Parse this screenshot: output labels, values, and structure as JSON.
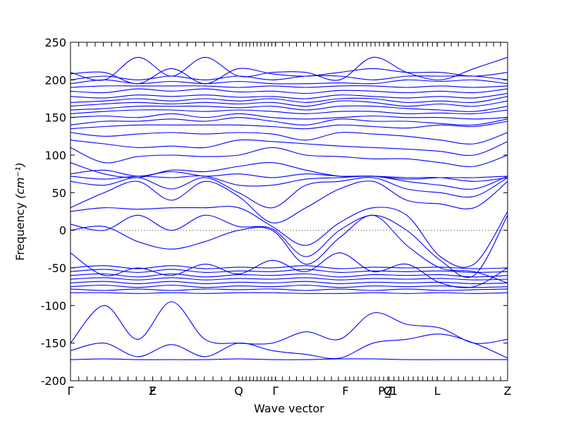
{
  "chart_data": {
    "type": "line",
    "title": "",
    "xlabel": "Wave vector",
    "ylabel": "Frequency",
    "ylabel_unit": "(cm⁻¹)",
    "ylim": [
      -200,
      250
    ],
    "yticks": [
      -200,
      -150,
      -100,
      -50,
      0,
      50,
      100,
      150,
      200,
      250
    ],
    "xlim": [
      0,
      1
    ],
    "grid": false,
    "legend": "none",
    "line_color": "#0000ff",
    "zero_line_color": "#4a4a4a",
    "high_symmetry_points": [
      {
        "label": "Γ",
        "x": 0.0
      },
      {
        "label": "F",
        "x": 0.188
      },
      {
        "label": "Z",
        "x": 0.188
      },
      {
        "label": "Q",
        "x": 0.385
      },
      {
        "label": "Γ",
        "x": 0.469
      },
      {
        "label": "F",
        "x": 0.629
      },
      {
        "label": "P_1",
        "x": 0.726
      },
      {
        "label": "Q",
        "x": 0.726
      },
      {
        "label": "Z",
        "x": 0.729
      },
      {
        "label": "L",
        "x": 0.839
      },
      {
        "label": "Z",
        "x": 1.0
      }
    ],
    "segments": [
      [
        0.0,
        0.188
      ],
      [
        0.188,
        0.385
      ],
      [
        0.385,
        0.469
      ],
      [
        0.469,
        0.629
      ],
      [
        0.629,
        0.726
      ],
      [
        0.729,
        0.839
      ],
      [
        0.839,
        1.0
      ]
    ],
    "series": [
      {
        "values": [
          -172,
          -171,
          -172,
          -172,
          -172,
          -171,
          -172,
          -172,
          -171,
          -171,
          -172,
          -172,
          -172,
          -172
        ]
      },
      {
        "values": [
          -160,
          -150,
          -168,
          -152,
          -168,
          -150,
          -160,
          -165,
          -170,
          -150,
          -145,
          -138,
          -150,
          -170
        ]
      },
      {
        "values": [
          -150,
          -100,
          -145,
          -95,
          -145,
          -150,
          -150,
          -135,
          -145,
          -110,
          -125,
          -130,
          -150,
          -145
        ]
      },
      {
        "values": [
          -83,
          -83,
          -84,
          -83,
          -84,
          -83,
          -83,
          -84,
          -84,
          -83,
          -84,
          -83,
          -84,
          -83
        ]
      },
      {
        "values": [
          -78,
          -80,
          -78,
          -80,
          -78,
          -79,
          -78,
          -80,
          -78,
          -80,
          -78,
          -80,
          -79,
          -78
        ]
      },
      {
        "values": [
          -75,
          -73,
          -76,
          -73,
          -76,
          -74,
          -75,
          -73,
          -76,
          -74,
          -75,
          -74,
          -76,
          -75
        ]
      },
      {
        "values": [
          -70,
          -68,
          -71,
          -68,
          -71,
          -69,
          -70,
          -68,
          -71,
          -69,
          -70,
          -69,
          -71,
          -70
        ]
      },
      {
        "values": [
          -65,
          -63,
          -66,
          -63,
          -66,
          -64,
          -65,
          -63,
          -66,
          -64,
          -65,
          -64,
          -66,
          -65
        ]
      },
      {
        "values": [
          -60,
          -58,
          -62,
          -58,
          -62,
          -59,
          -60,
          -58,
          -62,
          -59,
          -60,
          -59,
          -62,
          -60
        ]
      },
      {
        "values": [
          -55,
          -52,
          -56,
          -52,
          -56,
          -54,
          -55,
          -52,
          -56,
          -54,
          -55,
          -54,
          -56,
          -55
        ]
      },
      {
        "values": [
          -50,
          -47,
          -51,
          -47,
          -51,
          -49,
          -50,
          -47,
          -51,
          -49,
          -50,
          -49,
          -51,
          -50
        ]
      },
      {
        "values": [
          -30,
          -60,
          -50,
          -60,
          -45,
          -58,
          -40,
          -55,
          -30,
          -55,
          -45,
          -70,
          -75,
          -50
        ]
      },
      {
        "values": [
          0,
          5,
          -15,
          -25,
          -15,
          0,
          0,
          -45,
          -10,
          20,
          -20,
          -50,
          -55,
          -70
        ]
      },
      {
        "values": [
          8,
          0,
          20,
          0,
          20,
          5,
          2,
          -35,
          0,
          20,
          0,
          -40,
          -60,
          20
        ]
      },
      {
        "values": [
          25,
          30,
          28,
          30,
          30,
          30,
          5,
          -20,
          10,
          30,
          20,
          -35,
          -45,
          25
        ]
      },
      {
        "values": [
          30,
          50,
          65,
          40,
          65,
          45,
          10,
          30,
          55,
          65,
          40,
          35,
          30,
          65
        ]
      },
      {
        "values": [
          65,
          60,
          70,
          55,
          70,
          50,
          30,
          60,
          65,
          70,
          55,
          50,
          45,
          70
        ]
      },
      {
        "values": [
          72,
          68,
          72,
          70,
          72,
          60,
          60,
          68,
          70,
          72,
          65,
          60,
          55,
          72
        ]
      },
      {
        "values": [
          75,
          80,
          72,
          78,
          72,
          75,
          70,
          75,
          72,
          72,
          68,
          70,
          70,
          72
        ]
      },
      {
        "values": [
          90,
          75,
          70,
          80,
          78,
          85,
          90,
          80,
          72,
          72,
          70,
          70,
          65,
          70
        ]
      },
      {
        "values": [
          110,
          90,
          98,
          100,
          98,
          100,
          110,
          100,
          98,
          95,
          95,
          90,
          85,
          100
        ]
      },
      {
        "values": [
          120,
          115,
          110,
          112,
          110,
          120,
          118,
          115,
          112,
          110,
          108,
          105,
          100,
          118
        ]
      },
      {
        "values": [
          130,
          125,
          128,
          130,
          128,
          130,
          128,
          120,
          130,
          128,
          125,
          120,
          115,
          130
        ]
      },
      {
        "values": [
          135,
          138,
          140,
          140,
          140,
          140,
          138,
          135,
          140,
          138,
          136,
          140,
          138,
          145
        ]
      },
      {
        "values": [
          140,
          145,
          145,
          148,
          145,
          150,
          145,
          140,
          148,
          145,
          145,
          142,
          140,
          148
        ]
      },
      {
        "values": [
          150,
          152,
          150,
          155,
          150,
          155,
          150,
          148,
          150,
          152,
          150,
          150,
          148,
          150
        ]
      },
      {
        "values": [
          155,
          158,
          160,
          160,
          158,
          160,
          158,
          155,
          158,
          158,
          155,
          156,
          155,
          160
        ]
      },
      {
        "values": [
          160,
          162,
          165,
          165,
          165,
          163,
          165,
          160,
          165,
          165,
          162,
          160,
          158,
          165
        ]
      },
      {
        "values": [
          165,
          168,
          170,
          168,
          170,
          168,
          170,
          165,
          172,
          170,
          165,
          168,
          165,
          172
        ]
      },
      {
        "values": [
          170,
          172,
          175,
          172,
          175,
          172,
          175,
          170,
          175,
          175,
          170,
          172,
          170,
          178
        ]
      },
      {
        "values": [
          178,
          176,
          180,
          178,
          180,
          177,
          178,
          175,
          180,
          178,
          176,
          178,
          176,
          182
        ]
      },
      {
        "values": [
          185,
          183,
          188,
          185,
          188,
          184,
          185,
          182,
          186,
          185,
          183,
          185,
          183,
          188
        ]
      },
      {
        "values": [
          190,
          192,
          192,
          192,
          192,
          190,
          192,
          190,
          192,
          192,
          190,
          192,
          190,
          192
        ]
      },
      {
        "values": [
          195,
          200,
          195,
          198,
          195,
          198,
          195,
          195,
          196,
          195,
          200,
          198,
          200,
          195
        ]
      },
      {
        "values": [
          200,
          205,
          200,
          205,
          200,
          205,
          200,
          205,
          205,
          200,
          205,
          205,
          205,
          200
        ]
      },
      {
        "values": [
          208,
          210,
          195,
          215,
          195,
          215,
          208,
          205,
          210,
          215,
          210,
          210,
          205,
          210
        ]
      },
      {
        "values": [
          210,
          200,
          230,
          205,
          230,
          205,
          210,
          210,
          200,
          230,
          210,
          200,
          215,
          230
        ]
      }
    ]
  }
}
